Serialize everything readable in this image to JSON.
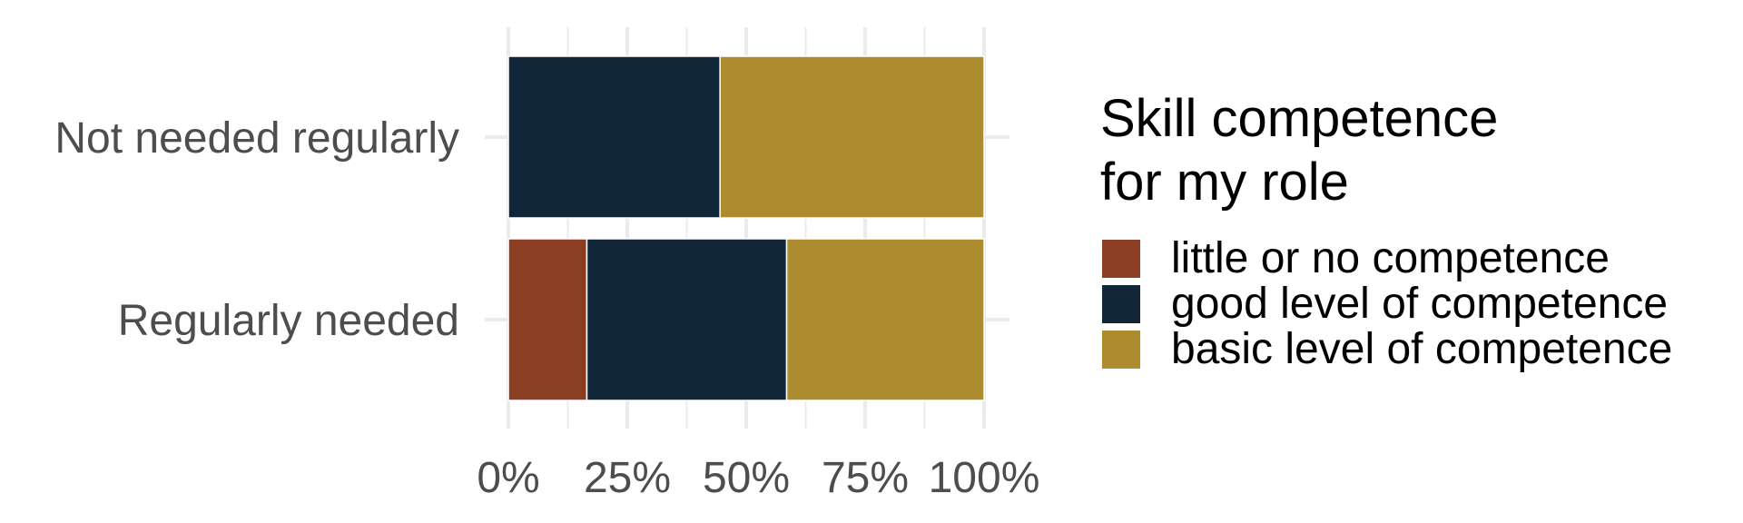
{
  "chart_data": {
    "type": "bar",
    "orientation": "horizontal",
    "stacked": true,
    "normalized": true,
    "categories": [
      "Not needed regularly",
      "Regularly needed"
    ],
    "series": [
      {
        "name": "little or no competence",
        "color": "#8B3E24",
        "values": [
          0,
          0.165
        ]
      },
      {
        "name": "good level of competence",
        "color": "#112739",
        "values": [
          0.445,
          0.42
        ]
      },
      {
        "name": "basic level of competence",
        "color": "#AD8B2F",
        "values": [
          0.555,
          0.415
        ]
      }
    ],
    "x_ticks": [
      "0%",
      "25%",
      "50%",
      "75%",
      "100%"
    ],
    "x_tick_values": [
      0,
      0.25,
      0.5,
      0.75,
      1.0
    ],
    "xlim": [
      0,
      1
    ],
    "grid": true,
    "legend": {
      "title_lines": [
        "Skill competence",
        "for my role"
      ],
      "placement": "right"
    },
    "title": "",
    "xlabel": "",
    "ylabel": ""
  }
}
